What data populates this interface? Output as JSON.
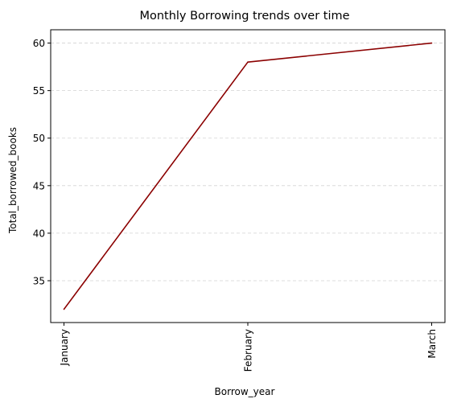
{
  "chart_data": {
    "type": "line",
    "title": "Monthly Borrowing trends over time",
    "xlabel": "Borrow_year",
    "ylabel": "Total_borrowed_books",
    "categories": [
      "January",
      "February",
      "March"
    ],
    "series": [
      {
        "values": [
          32,
          58,
          60
        ]
      }
    ],
    "ylim": [
      30.6,
      61.4
    ],
    "yticks": [
      35,
      40,
      45,
      50,
      55,
      60
    ],
    "grid": "y-dashed",
    "line_color": "#8b0000",
    "grid_color": "#d3d3d3"
  }
}
